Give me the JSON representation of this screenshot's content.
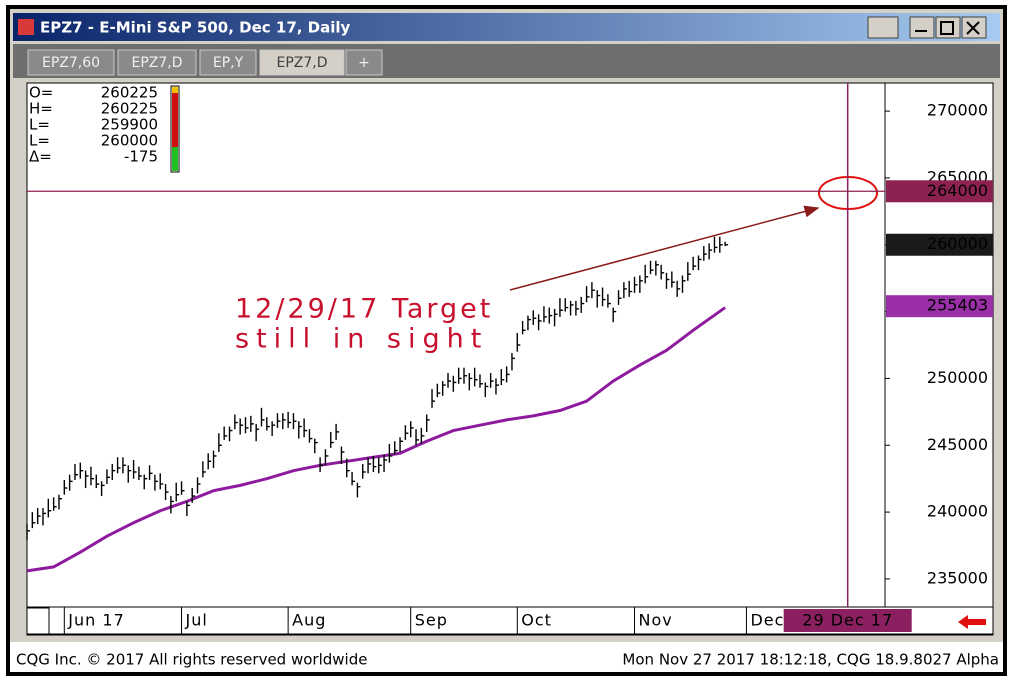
{
  "window": {
    "title": "EPZ7 - E-Mini S&P 500, Dec 17, Daily",
    "tabs": [
      "EPZ7,60",
      "EPZ7,D",
      "EP,Y",
      "EPZ7,D",
      "+"
    ]
  },
  "footer": {
    "left": "CQG Inc. © 2017 All rights reserved worldwide",
    "right": "Mon Nov 27 2017 18:12:18, CQG 18.9.8027 Alpha"
  },
  "chart_data": {
    "type": "ohlc",
    "color": "#000000",
    "x": [
      0,
      1,
      2,
      3,
      4,
      5,
      6,
      7,
      8,
      9,
      10,
      11,
      12,
      13,
      14,
      15,
      16,
      17,
      18,
      19,
      20,
      21,
      22,
      23,
      24,
      25,
      26,
      27,
      28,
      29,
      30,
      31,
      32,
      33,
      34,
      35,
      36,
      37,
      38,
      39,
      40,
      41,
      42,
      43,
      44,
      45,
      46,
      47,
      48,
      49,
      50,
      51,
      52,
      53,
      54,
      55,
      56,
      57,
      58,
      59,
      60,
      61,
      62,
      63,
      64,
      65,
      66,
      67,
      68,
      69,
      70,
      71,
      72,
      73,
      74,
      75,
      76,
      77,
      78,
      79,
      80,
      81,
      82,
      83,
      84,
      85,
      86,
      87,
      88,
      89,
      90,
      91,
      92,
      93,
      94,
      95,
      96,
      97,
      98,
      99,
      100,
      101,
      102,
      103,
      104,
      105,
      106,
      107,
      108,
      109,
      110,
      111,
      112,
      113,
      114,
      115,
      116,
      117,
      118,
      119,
      120,
      121,
      122,
      123,
      124,
      125,
      126,
      127,
      128,
      129,
      130,
      131
    ],
    "high": [
      239100,
      240000,
      240300,
      240300,
      241000,
      241100,
      241300,
      242400,
      242800,
      243600,
      243700,
      243100,
      243400,
      242800,
      242300,
      243200,
      243600,
      244100,
      244100,
      243500,
      243900,
      243400,
      242800,
      243500,
      242800,
      242900,
      242100,
      241200,
      242200,
      242300,
      240800,
      241800,
      242600,
      243800,
      244400,
      244600,
      245900,
      246400,
      246400,
      247300,
      247000,
      247100,
      247200,
      246600,
      247800,
      247100,
      246800,
      247400,
      247400,
      247500,
      247400,
      246800,
      247000,
      246200,
      245500,
      244100,
      244700,
      246000,
      246600,
      244900,
      244000,
      243000,
      242200,
      243600,
      244100,
      244200,
      244100,
      244300,
      245100,
      245300,
      245600,
      246500,
      246800,
      246200,
      246300,
      247300,
      249200,
      249600,
      249800,
      250400,
      250200,
      250800,
      250800,
      250400,
      250800,
      250300,
      249700,
      250400,
      250000,
      250700,
      250900,
      251900,
      253400,
      254300,
      254700,
      255100,
      254800,
      255400,
      255300,
      255200,
      256000,
      256000,
      255800,
      255800,
      256100,
      256900,
      257200,
      256600,
      256800,
      256300,
      255300,
      256600,
      257200,
      257300,
      257600,
      257700,
      258500,
      258800,
      258800,
      258500,
      257900,
      258000,
      257300,
      257700,
      258700,
      259100,
      259200,
      259900,
      260100,
      260600,
      260600,
      260225
    ],
    "low": [
      237900,
      238800,
      239100,
      239000,
      239600,
      240100,
      240200,
      241300,
      241600,
      242400,
      242500,
      241800,
      242000,
      241800,
      241200,
      242100,
      242400,
      242900,
      242900,
      242200,
      242500,
      242400,
      241700,
      242400,
      241600,
      241700,
      240900,
      239900,
      240800,
      241300,
      239700,
      240700,
      241400,
      242600,
      243200,
      243300,
      244500,
      245400,
      245300,
      246200,
      245800,
      245900,
      246000,
      245300,
      246400,
      246100,
      245700,
      246300,
      246200,
      246300,
      246200,
      245500,
      245600,
      245200,
      244400,
      243000,
      243500,
      244800,
      245400,
      243600,
      242600,
      242000,
      241100,
      242500,
      242900,
      243000,
      242900,
      243000,
      243700,
      244300,
      244500,
      245400,
      245600,
      245000,
      245100,
      246000,
      247800,
      248600,
      248700,
      249300,
      249000,
      249600,
      249600,
      249100,
      249400,
      249300,
      248600,
      249300,
      248800,
      249500,
      249700,
      250600,
      252000,
      253300,
      253600,
      254000,
      253600,
      254200,
      254100,
      253900,
      254600,
      255000,
      254700,
      254700,
      254900,
      255700,
      256000,
      255300,
      255400,
      255300,
      254200,
      255500,
      256000,
      256100,
      256400,
      256400,
      257100,
      257800,
      257700,
      257400,
      256700,
      256800,
      256100,
      256400,
      257300,
      258100,
      258100,
      258800,
      258900,
      259400,
      259400,
      259900
    ],
    "close": [
      238600,
      239200,
      239700,
      239900,
      240100,
      240400,
      241000,
      241800,
      242300,
      242800,
      243100,
      242700,
      242500,
      242100,
      242000,
      242600,
      243100,
      243300,
      243500,
      243100,
      243000,
      242700,
      242500,
      242900,
      242300,
      242100,
      241500,
      240800,
      241300,
      241600,
      240500,
      241200,
      242100,
      243000,
      243800,
      244200,
      245000,
      245700,
      246100,
      246700,
      246500,
      246300,
      246600,
      246200,
      246900,
      246400,
      246500,
      246800,
      246900,
      246700,
      246800,
      246400,
      246100,
      245500,
      245200,
      243500,
      244200,
      245200,
      246000,
      244500,
      243100,
      242300,
      241900,
      243000,
      243600,
      243400,
      243500,
      243900,
      244200,
      244600,
      245300,
      245900,
      246300,
      245400,
      245700,
      246900,
      248300,
      248900,
      249500,
      249800,
      249700,
      250000,
      250200,
      250000,
      249900,
      249600,
      249400,
      249800,
      249500,
      249900,
      250300,
      251500,
      252500,
      253600,
      254400,
      254500,
      254300,
      254600,
      254700,
      254800,
      255100,
      255300,
      255500,
      255200,
      255600,
      256100,
      256600,
      256200,
      255900,
      255600,
      255000,
      256000,
      256700,
      256500,
      257000,
      257300,
      257600,
      258100,
      258500,
      257900,
      257400,
      257200,
      256700,
      257300,
      257800,
      258400,
      258900,
      259300,
      259600,
      259800,
      260000,
      260000
    ],
    "moving_average": {
      "color": "#8e1a9e",
      "x": [
        0,
        5,
        10,
        15,
        20,
        25,
        30,
        35,
        40,
        45,
        50,
        55,
        60,
        65,
        70,
        75,
        80,
        85,
        90,
        95,
        100,
        105,
        110,
        115,
        120,
        125,
        131
      ],
      "values": [
        235600,
        235900,
        237000,
        238200,
        239200,
        240100,
        240800,
        241600,
        242000,
        242500,
        243100,
        243500,
        243800,
        244100,
        244400,
        245300,
        246100,
        246500,
        246900,
        247200,
        247600,
        248300,
        249800,
        251000,
        252100,
        253600,
        255300
      ]
    },
    "xlim": [
      0,
      161
    ],
    "xticks": [
      {
        "value": 7,
        "label": "Jun 17"
      },
      {
        "value": 29,
        "label": "Jul"
      },
      {
        "value": 49,
        "label": "Aug"
      },
      {
        "value": 72,
        "label": "Sep"
      },
      {
        "value": 92,
        "label": "Oct"
      },
      {
        "value": 114,
        "label": "Nov"
      },
      {
        "value": 135,
        "label": "Dec"
      }
    ],
    "target_date": {
      "value": 154,
      "label": "29 Dec 17",
      "color": "#8b2060"
    },
    "ylim": [
      232900,
      272100
    ],
    "yticks": [
      235000,
      240000,
      245000,
      250000,
      255000,
      260000,
      265000,
      270000
    ],
    "price_tags": [
      {
        "value": 264000,
        "color": "#8b2252",
        "line": true
      },
      {
        "value": 260000,
        "color": "#1a1a1a",
        "line": false
      },
      {
        "value": 255403,
        "color": "#9b2fa8",
        "line": false
      }
    ],
    "readout": {
      "labels": [
        "O=",
        "H=",
        "L=",
        "L=",
        "Δ="
      ],
      "values": [
        260225,
        260225,
        259900,
        260000,
        -175
      ]
    },
    "annotation": [
      "12/29/17 Target",
      "still in sight"
    ]
  }
}
